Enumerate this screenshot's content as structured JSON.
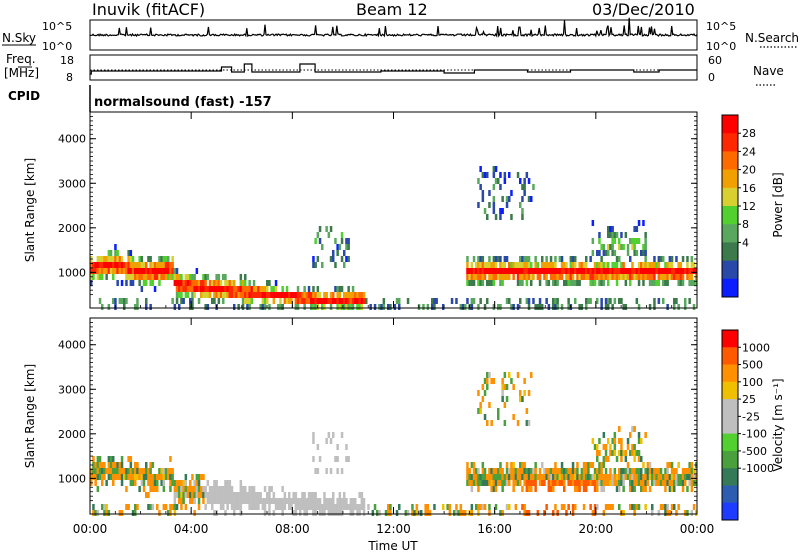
{
  "header": {
    "station": "Inuvik (fitACF)",
    "beam": "Beam 12",
    "date": "03/Dec/2010"
  },
  "top_panels": {
    "nsky_label": "N.Sky",
    "nsky_ticks": [
      "10^5",
      "10^0"
    ],
    "nsearch_label": "N.Search",
    "nsearch_ticks": [
      "10^5",
      "10^0"
    ],
    "freq_label": "Freq.",
    "freq_unit": "[MHz]",
    "freq_ticks": [
      "18",
      "8"
    ],
    "nave_label": "Nave",
    "nave_ticks": [
      "60",
      "0"
    ],
    "cpid_label": "CPID",
    "cpid_text": "normalsound (fast) -157"
  },
  "chart_data": [
    {
      "type": "heatmap",
      "name": "power",
      "ylabel": "Slant Range [km]",
      "yticks": [
        "1000",
        "2000",
        "3000",
        "4000"
      ],
      "ylim": [
        200,
        4600
      ],
      "xlim_hours": [
        0,
        24
      ],
      "colorbar_label": "Power [dB]",
      "colorbar_ticks": [
        "4",
        "8",
        "12",
        "16",
        "20",
        "24",
        "28"
      ],
      "colors": [
        "#0a1eff",
        "#2a48a8",
        "#3c7a4c",
        "#5aa860",
        "#52d030",
        "#d8d030",
        "#f0a000",
        "#ff6a00",
        "#ff2800",
        "#ff0000"
      ]
    },
    {
      "type": "heatmap",
      "name": "velocity",
      "ylabel": "Slant Range [km]",
      "yticks": [
        "1000",
        "2000",
        "3000",
        "4000"
      ],
      "ylim": [
        200,
        4600
      ],
      "xlim_hours": [
        0,
        24
      ],
      "xlabel": "Time UT",
      "xticks": [
        "00:00",
        "04:00",
        "08:00",
        "12:00",
        "16:00",
        "20:00",
        "00:00"
      ],
      "colorbar_label": "Velocity [m s⁻¹]",
      "colorbar_ticks": [
        "1000",
        "500",
        "100",
        "25",
        "-25",
        "-100",
        "-500",
        "-1000"
      ],
      "colors": [
        "#1e3cff",
        "#2d5db0",
        "#357a58",
        "#4aa03c",
        "#52d030",
        "#bfbfbf",
        "#bfbfbf",
        "#f0c000",
        "#ff9000",
        "#ff5a00",
        "#ff0000"
      ]
    }
  ]
}
